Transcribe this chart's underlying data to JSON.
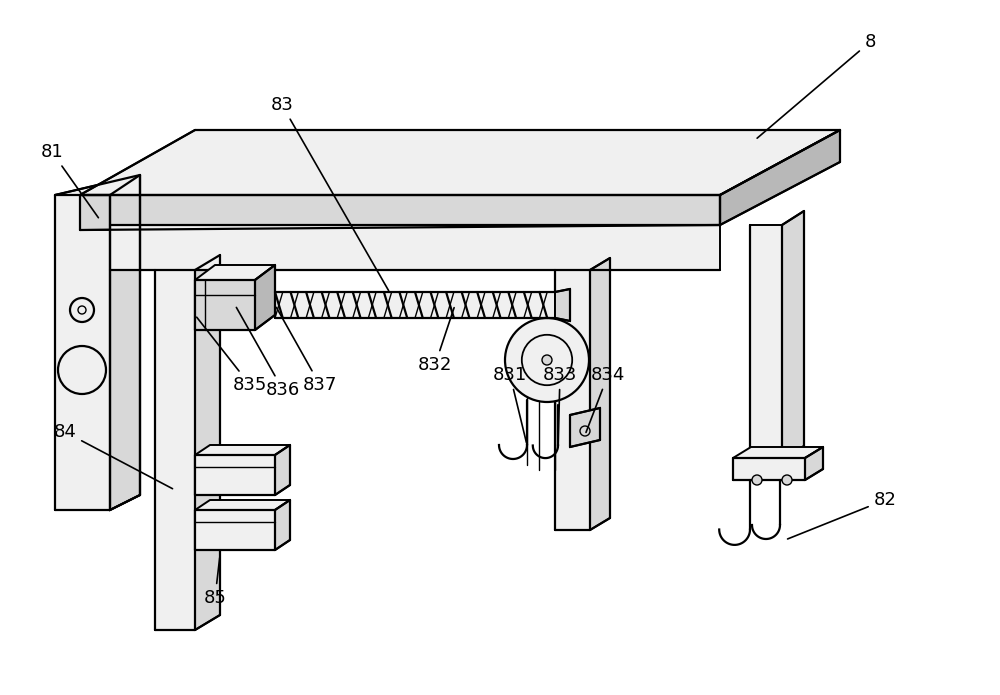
{
  "background_color": "#ffffff",
  "line_color": "#000000",
  "fill_light": "#f0f0f0",
  "fill_mid": "#d8d8d8",
  "fill_dark": "#b8b8b8",
  "figsize": [
    10.0,
    6.95
  ],
  "dpi": 100,
  "lw_main": 1.6,
  "lw_detail": 1.0,
  "label_fontsize": 13
}
